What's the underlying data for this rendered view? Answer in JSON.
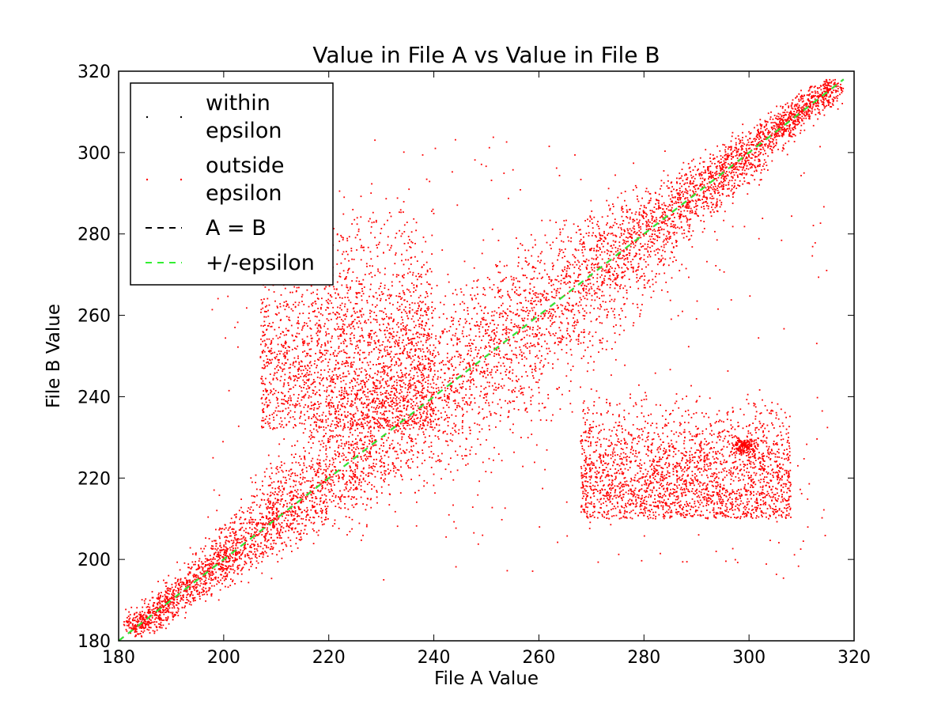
{
  "chart_data": {
    "type": "scatter",
    "title": "Value in File A vs Value in File B",
    "xlabel": "File A Value",
    "ylabel": "File B Value",
    "xlim": [
      180,
      320
    ],
    "ylim": [
      180,
      320
    ],
    "xticks": [
      180,
      200,
      220,
      240,
      260,
      280,
      300,
      320
    ],
    "yticks": [
      180,
      200,
      220,
      240,
      260,
      280,
      300,
      320
    ],
    "grid": false,
    "legend_position": "top-left",
    "series": [
      {
        "name": "within epsilon",
        "kind": "points",
        "color": "#000000"
      },
      {
        "name": "outside epsilon",
        "kind": "points",
        "color": "#ff0000",
        "clusters": [
          {
            "region": "main diagonal band",
            "x_range": [
              182,
              317
            ],
            "y_range": [
              183,
              318
            ]
          },
          {
            "region": "upper-left spread",
            "x_range": [
              205,
              240
            ],
            "y_range": [
              230,
              300
            ]
          },
          {
            "region": "lower-right spread",
            "x_range": [
              265,
              310
            ],
            "y_range": [
              208,
              245
            ]
          },
          {
            "region": "dense knot",
            "x": 299,
            "y": 228
          }
        ]
      },
      {
        "name": "A = B",
        "kind": "line",
        "style": "dashed",
        "color": "#000000",
        "x": [
          180,
          318
        ],
        "y": [
          180,
          318
        ]
      },
      {
        "name": "+/-epsilon",
        "kind": "line",
        "style": "dashed",
        "color": "#33ee33",
        "x": [
          180,
          318
        ],
        "y": [
          180,
          318
        ]
      }
    ],
    "legend": {
      "entries": [
        {
          "lines": [
            "within",
            "epsilon"
          ]
        },
        {
          "lines": [
            "outside",
            "epsilon"
          ]
        },
        {
          "lines": [
            "A = B"
          ]
        },
        {
          "lines": [
            "+/-epsilon"
          ]
        }
      ]
    }
  }
}
